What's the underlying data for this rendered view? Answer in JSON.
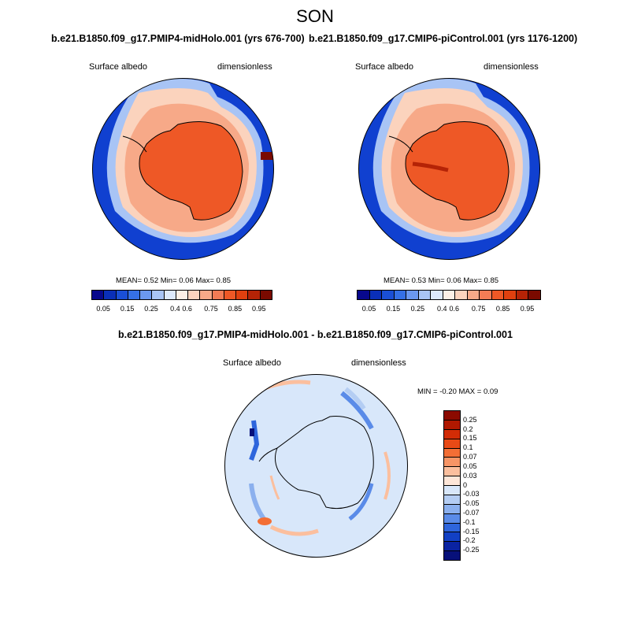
{
  "season": "SON",
  "panels": [
    {
      "title": "b.e21.B1850.f09_g17.PMIP4-midHolo.001 (yrs 676-700)",
      "variable": "Surface albedo",
      "units": "dimensionless",
      "stats": "MEAN=   0.52  Min=   0.06  Max=   0.85"
    },
    {
      "title": "b.e21.B1850.f09_g17.CMIP6-piControl.001 (yrs 1176-1200)",
      "variable": "Surface albedo",
      "units": "dimensionless",
      "stats": "MEAN=   0.53  Min=   0.06  Max=   0.85"
    }
  ],
  "albedo_colorbar": {
    "ticks": [
      "0.05",
      "0.15",
      "0.25",
      "0.4",
      "0.6",
      "0.75",
      "0.85",
      "0.95"
    ],
    "colors": [
      "#08088c",
      "#0a2fb8",
      "#1a4fd6",
      "#3570e6",
      "#6b98f0",
      "#a8c4f5",
      "#dde9fb",
      "#fdf0e6",
      "#fbd3bd",
      "#f7a988",
      "#f37c55",
      "#ee5826",
      "#e0400f",
      "#b52306",
      "#7a0a00"
    ]
  },
  "diff_panel": {
    "title": "b.e21.B1850.f09_g17.PMIP4-midHolo.001 - b.e21.B1850.f09_g17.CMIP6-piControl.001",
    "variable": "Surface albedo",
    "units": "dimensionless",
    "stats": "MIN =  -0.20 MAX =   0.09"
  },
  "diff_colorbar": {
    "ticks": [
      "0.25",
      "0.2",
      "0.15",
      "0.1",
      "0.07",
      "0.05",
      "0.03",
      "0",
      "-0.03",
      "-0.05",
      "-0.07",
      "-0.1",
      "-0.15",
      "-0.2",
      "-0.25"
    ],
    "colors": [
      "#8b0a00",
      "#b01800",
      "#d22c06",
      "#e84a16",
      "#f36e35",
      "#f79566",
      "#fbbf9e",
      "#fde6d8",
      "#d8e7fa",
      "#b4cdf3",
      "#8bb0ee",
      "#5a8be8",
      "#2e65dc",
      "#1240c4",
      "#0a23a2",
      "#07107a"
    ]
  }
}
